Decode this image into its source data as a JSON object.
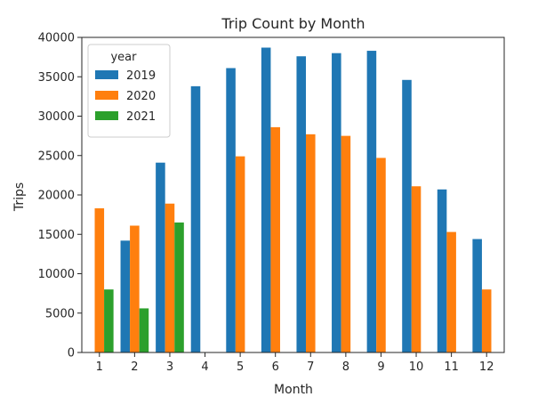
{
  "chart_data": {
    "type": "bar",
    "title": "Trip Count by Month",
    "xlabel": "Month",
    "ylabel": "Trips",
    "categories": [
      "1",
      "2",
      "3",
      "4",
      "5",
      "6",
      "7",
      "8",
      "9",
      "10",
      "11",
      "12"
    ],
    "ylim": [
      0,
      40000
    ],
    "yticks": [
      0,
      5000,
      10000,
      15000,
      20000,
      25000,
      30000,
      35000,
      40000
    ],
    "ytick_labels": [
      "0",
      "5000",
      "10000",
      "15000",
      "20000",
      "25000",
      "30000",
      "35000",
      "40000"
    ],
    "legend": {
      "title": "year",
      "position": "top-left"
    },
    "grid": false,
    "series": [
      {
        "name": "2019",
        "color": "#1f77b4",
        "values": [
          null,
          14200,
          24100,
          33800,
          36100,
          38700,
          37600,
          38000,
          38300,
          34600,
          20700,
          14400
        ]
      },
      {
        "name": "2020",
        "color": "#ff7f0e",
        "values": [
          18300,
          16100,
          18900,
          null,
          24900,
          28600,
          27700,
          27500,
          24700,
          21100,
          15300,
          8000
        ]
      },
      {
        "name": "2021",
        "color": "#2ca02c",
        "values": [
          8000,
          5600,
          16500,
          null,
          null,
          null,
          null,
          null,
          null,
          null,
          null,
          null
        ]
      }
    ]
  }
}
